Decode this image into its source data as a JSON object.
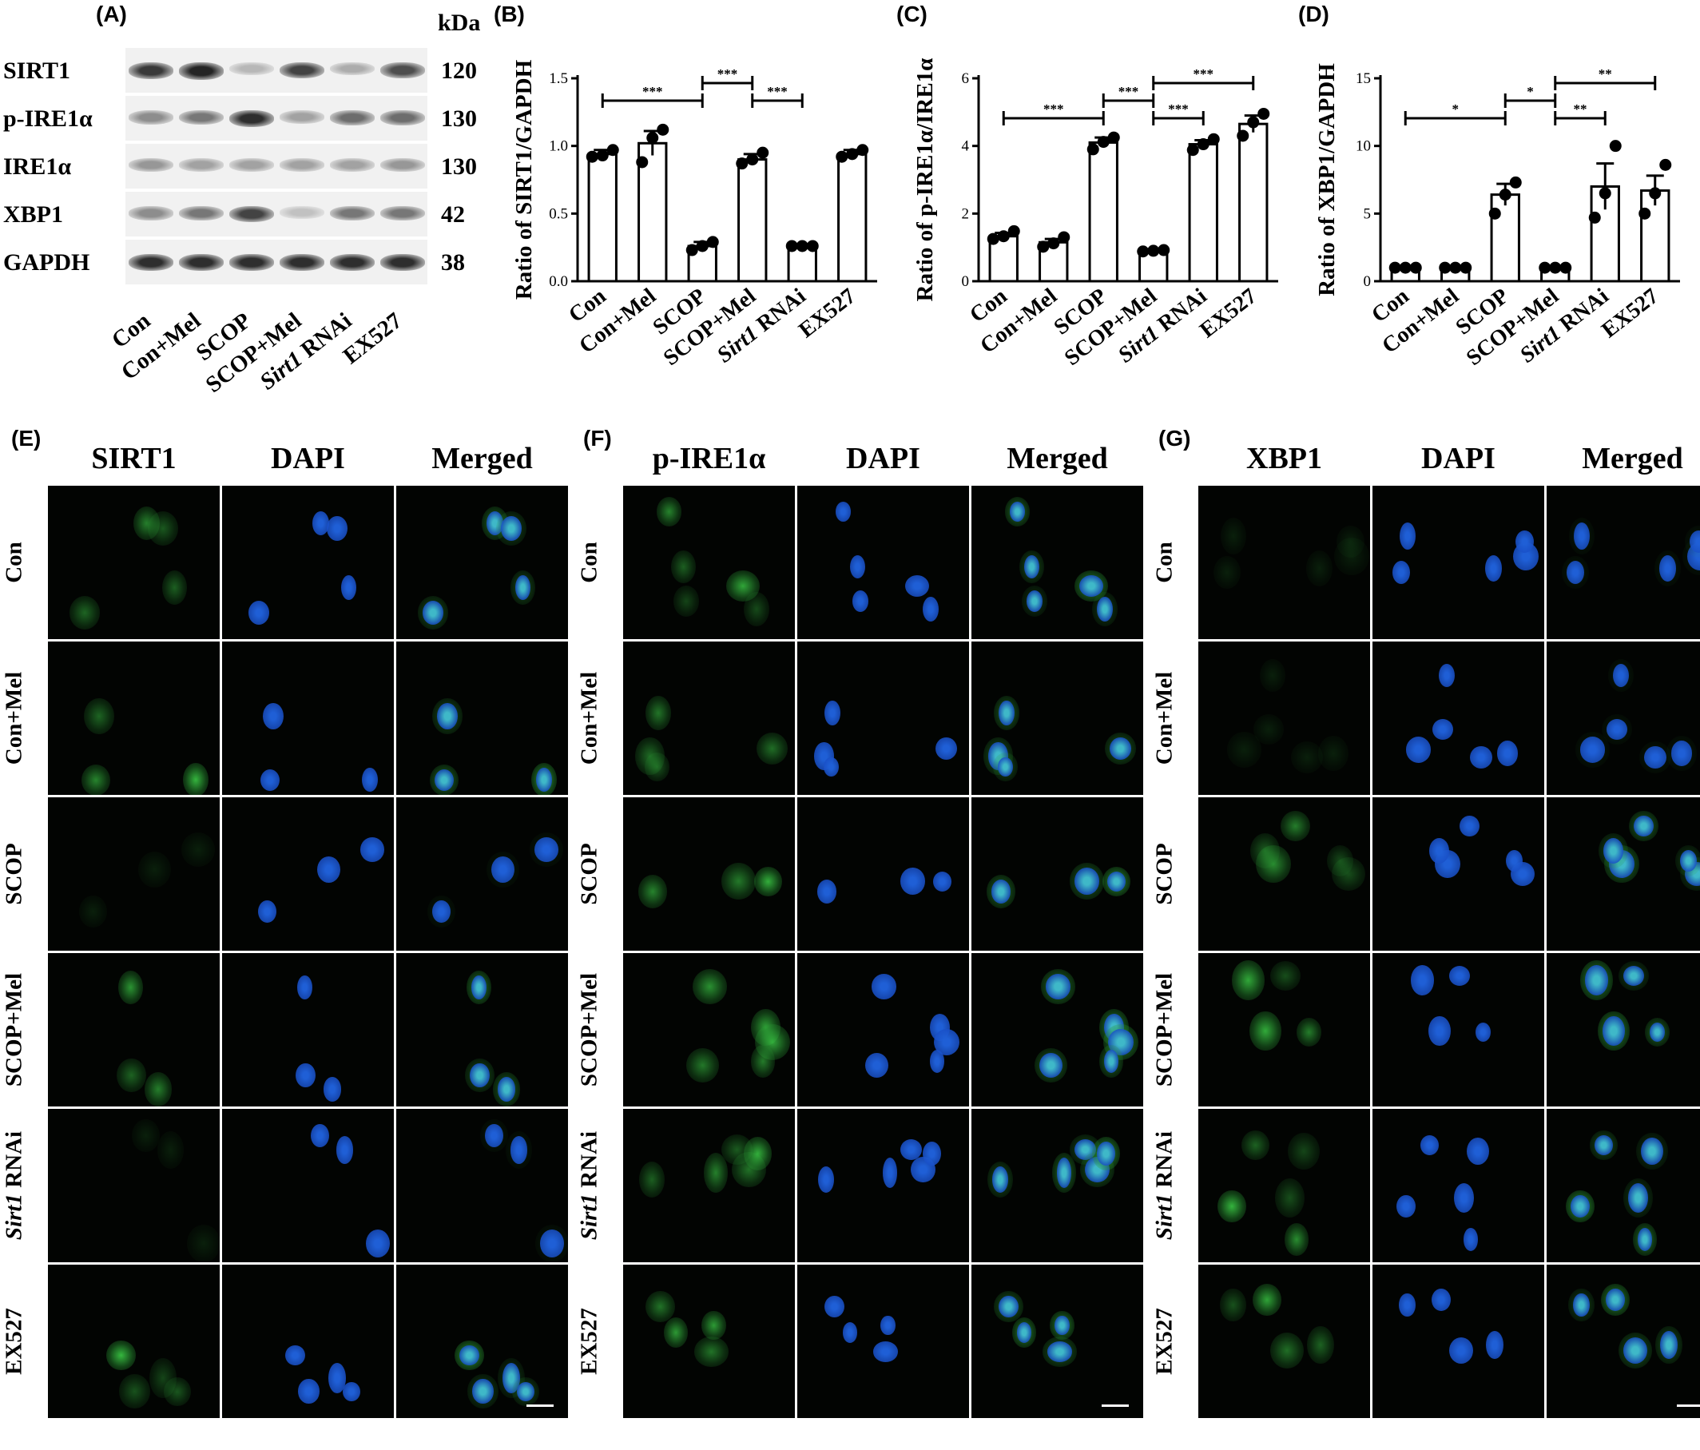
{
  "panel_labels": [
    "(A)",
    "(B)",
    "(C)",
    "(D)",
    "(E)",
    "(F)",
    "(G)"
  ],
  "western_blot": {
    "kda_header": "kDa",
    "bands": [
      {
        "protein": "SIRT1",
        "kda": "120"
      },
      {
        "protein": "p-IRE1α",
        "kda": "130"
      },
      {
        "protein": "IRE1α",
        "kda": "130"
      },
      {
        "protein": "XBP1",
        "kda": "42"
      },
      {
        "protein": "GAPDH",
        "kda": "38"
      }
    ],
    "lanes": [
      "Con",
      "Con+Mel",
      "SCOP",
      "SCOP+Mel",
      "Sirt1 RNAi",
      "EX527"
    ]
  },
  "chart_data": [
    {
      "type": "bar",
      "panel": "(B)",
      "ylabel": "Ratio of SIRT1/GAPDH",
      "categories": [
        "Con",
        "Con+Mel",
        "SCOP",
        "SCOP+Mel",
        "Sirt1 RNAi",
        "EX527"
      ],
      "values": [
        0.94,
        1.02,
        0.26,
        0.9,
        0.26,
        0.94
      ],
      "sem": [
        0.03,
        0.09,
        0.03,
        0.04,
        0.005,
        0.03
      ],
      "points": [
        [
          0.92,
          0.93,
          0.97
        ],
        [
          0.88,
          1.06,
          1.12
        ],
        [
          0.23,
          0.26,
          0.29
        ],
        [
          0.87,
          0.9,
          0.95
        ],
        [
          0.26,
          0.26,
          0.26
        ],
        [
          0.92,
          0.94,
          0.97
        ]
      ],
      "ylim": [
        0,
        1.5
      ],
      "yticks": [
        "0.0",
        "0.5",
        "1.0",
        "1.5"
      ],
      "significance": [
        {
          "from": "Con",
          "to": "SCOP",
          "label": "***"
        },
        {
          "from": "SCOP",
          "to": "SCOP+Mel",
          "label": "***"
        },
        {
          "from": "SCOP+Mel",
          "to": "Sirt1 RNAi",
          "label": "***"
        }
      ]
    },
    {
      "type": "bar",
      "panel": "(C)",
      "ylabel": "Ratio of p-IRE1α/IRE1α",
      "categories": [
        "Con",
        "Con+Mel",
        "SCOP",
        "SCOP+Mel",
        "Sirt1 RNAi",
        "EX527"
      ],
      "values": [
        1.33,
        1.15,
        4.1,
        0.9,
        4.05,
        4.65
      ],
      "sem": [
        0.1,
        0.1,
        0.15,
        0.03,
        0.12,
        0.25
      ],
      "points": [
        [
          1.25,
          1.33,
          1.48
        ],
        [
          1.02,
          1.12,
          1.3
        ],
        [
          3.9,
          4.12,
          4.25
        ],
        [
          0.88,
          0.9,
          0.92
        ],
        [
          3.88,
          4.05,
          4.2
        ],
        [
          4.3,
          4.7,
          4.95
        ]
      ],
      "ylim": [
        0,
        6
      ],
      "yticks": [
        "0",
        "2",
        "4",
        "6"
      ],
      "significance": [
        {
          "from": "Con",
          "to": "SCOP",
          "label": "***"
        },
        {
          "from": "SCOP",
          "to": "SCOP+Mel",
          "label": "***"
        },
        {
          "from": "SCOP+Mel",
          "to": "Sirt1 RNAi",
          "label": "***"
        },
        {
          "from": "SCOP+Mel",
          "to": "EX527",
          "label": "***"
        }
      ]
    },
    {
      "type": "bar",
      "panel": "(D)",
      "ylabel": "Ratio of XBP1/GAPDH",
      "categories": [
        "Con",
        "Con+Mel",
        "SCOP",
        "SCOP+Mel",
        "Sirt1 RNAi",
        "EX527"
      ],
      "values": [
        1.0,
        1.0,
        6.4,
        1.0,
        7.0,
        6.7
      ],
      "sem": [
        0.02,
        0.02,
        0.8,
        0.02,
        1.7,
        1.1
      ],
      "points": [
        [
          1.0,
          1.0,
          1.0
        ],
        [
          1.0,
          1.0,
          1.0
        ],
        [
          5.0,
          6.4,
          7.3
        ],
        [
          1.0,
          1.0,
          1.0
        ],
        [
          4.7,
          6.5,
          10.0
        ],
        [
          5.0,
          6.5,
          8.6
        ]
      ],
      "ylim": [
        0,
        15
      ],
      "yticks": [
        "0",
        "5",
        "10",
        "15"
      ],
      "significance": [
        {
          "from": "Con",
          "to": "SCOP",
          "label": "*"
        },
        {
          "from": "SCOP",
          "to": "SCOP+Mel",
          "label": "*"
        },
        {
          "from": "SCOP+Mel",
          "to": "Sirt1 RNAi",
          "label": "**"
        },
        {
          "from": "SCOP+Mel",
          "to": "EX527",
          "label": "**"
        }
      ]
    }
  ],
  "micrographs": {
    "row_labels": [
      "Con",
      "Con+Mel",
      "SCOP",
      "SCOP+Mel",
      "Sirt1 RNAi",
      "EX527"
    ],
    "groups": [
      {
        "columns": [
          "SIRT1",
          "DAPI",
          "Merged"
        ]
      },
      {
        "columns": [
          "p-IRE1α",
          "DAPI",
          "Merged"
        ]
      },
      {
        "columns": [
          "XBP1",
          "DAPI",
          "Merged"
        ]
      }
    ],
    "colors": {
      "green": "#3fd94a",
      "blue": "#1f5fd6",
      "background": "#020402"
    }
  }
}
